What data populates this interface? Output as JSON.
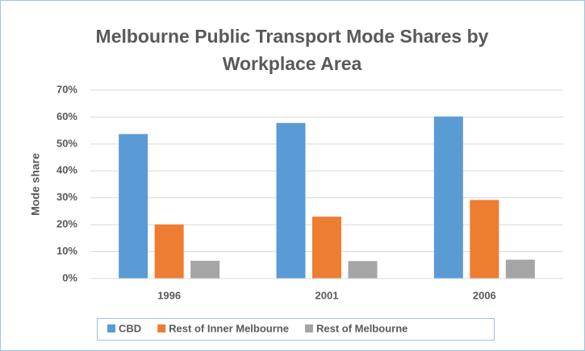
{
  "chart_data": {
    "type": "bar",
    "title": "Melbourne Public Transport Mode Shares by Workplace Area",
    "ylabel": "Mode share",
    "categories": [
      "1996",
      "2001",
      "2006"
    ],
    "series": [
      {
        "name": "CBD",
        "color": "#5b9bd5",
        "values": [
          53.7,
          57.8,
          60.2
        ]
      },
      {
        "name": "Rest of Inner Melbourne",
        "color": "#ed7d31",
        "values": [
          20.1,
          23.0,
          29.2
        ]
      },
      {
        "name": "Rest of Melbourne",
        "color": "#a5a5a5",
        "values": [
          6.6,
          6.5,
          7.0
        ]
      }
    ],
    "ylim": [
      0,
      70
    ],
    "yticks": [
      {
        "value": 0,
        "label": "0%"
      },
      {
        "value": 10,
        "label": "10%"
      },
      {
        "value": 20,
        "label": "20%"
      },
      {
        "value": 30,
        "label": "30%"
      },
      {
        "value": 40,
        "label": "40%"
      },
      {
        "value": 50,
        "label": "50%"
      },
      {
        "value": 60,
        "label": "60%"
      },
      {
        "value": 70,
        "label": "70%"
      }
    ],
    "grid": true,
    "legend": "bottom"
  }
}
